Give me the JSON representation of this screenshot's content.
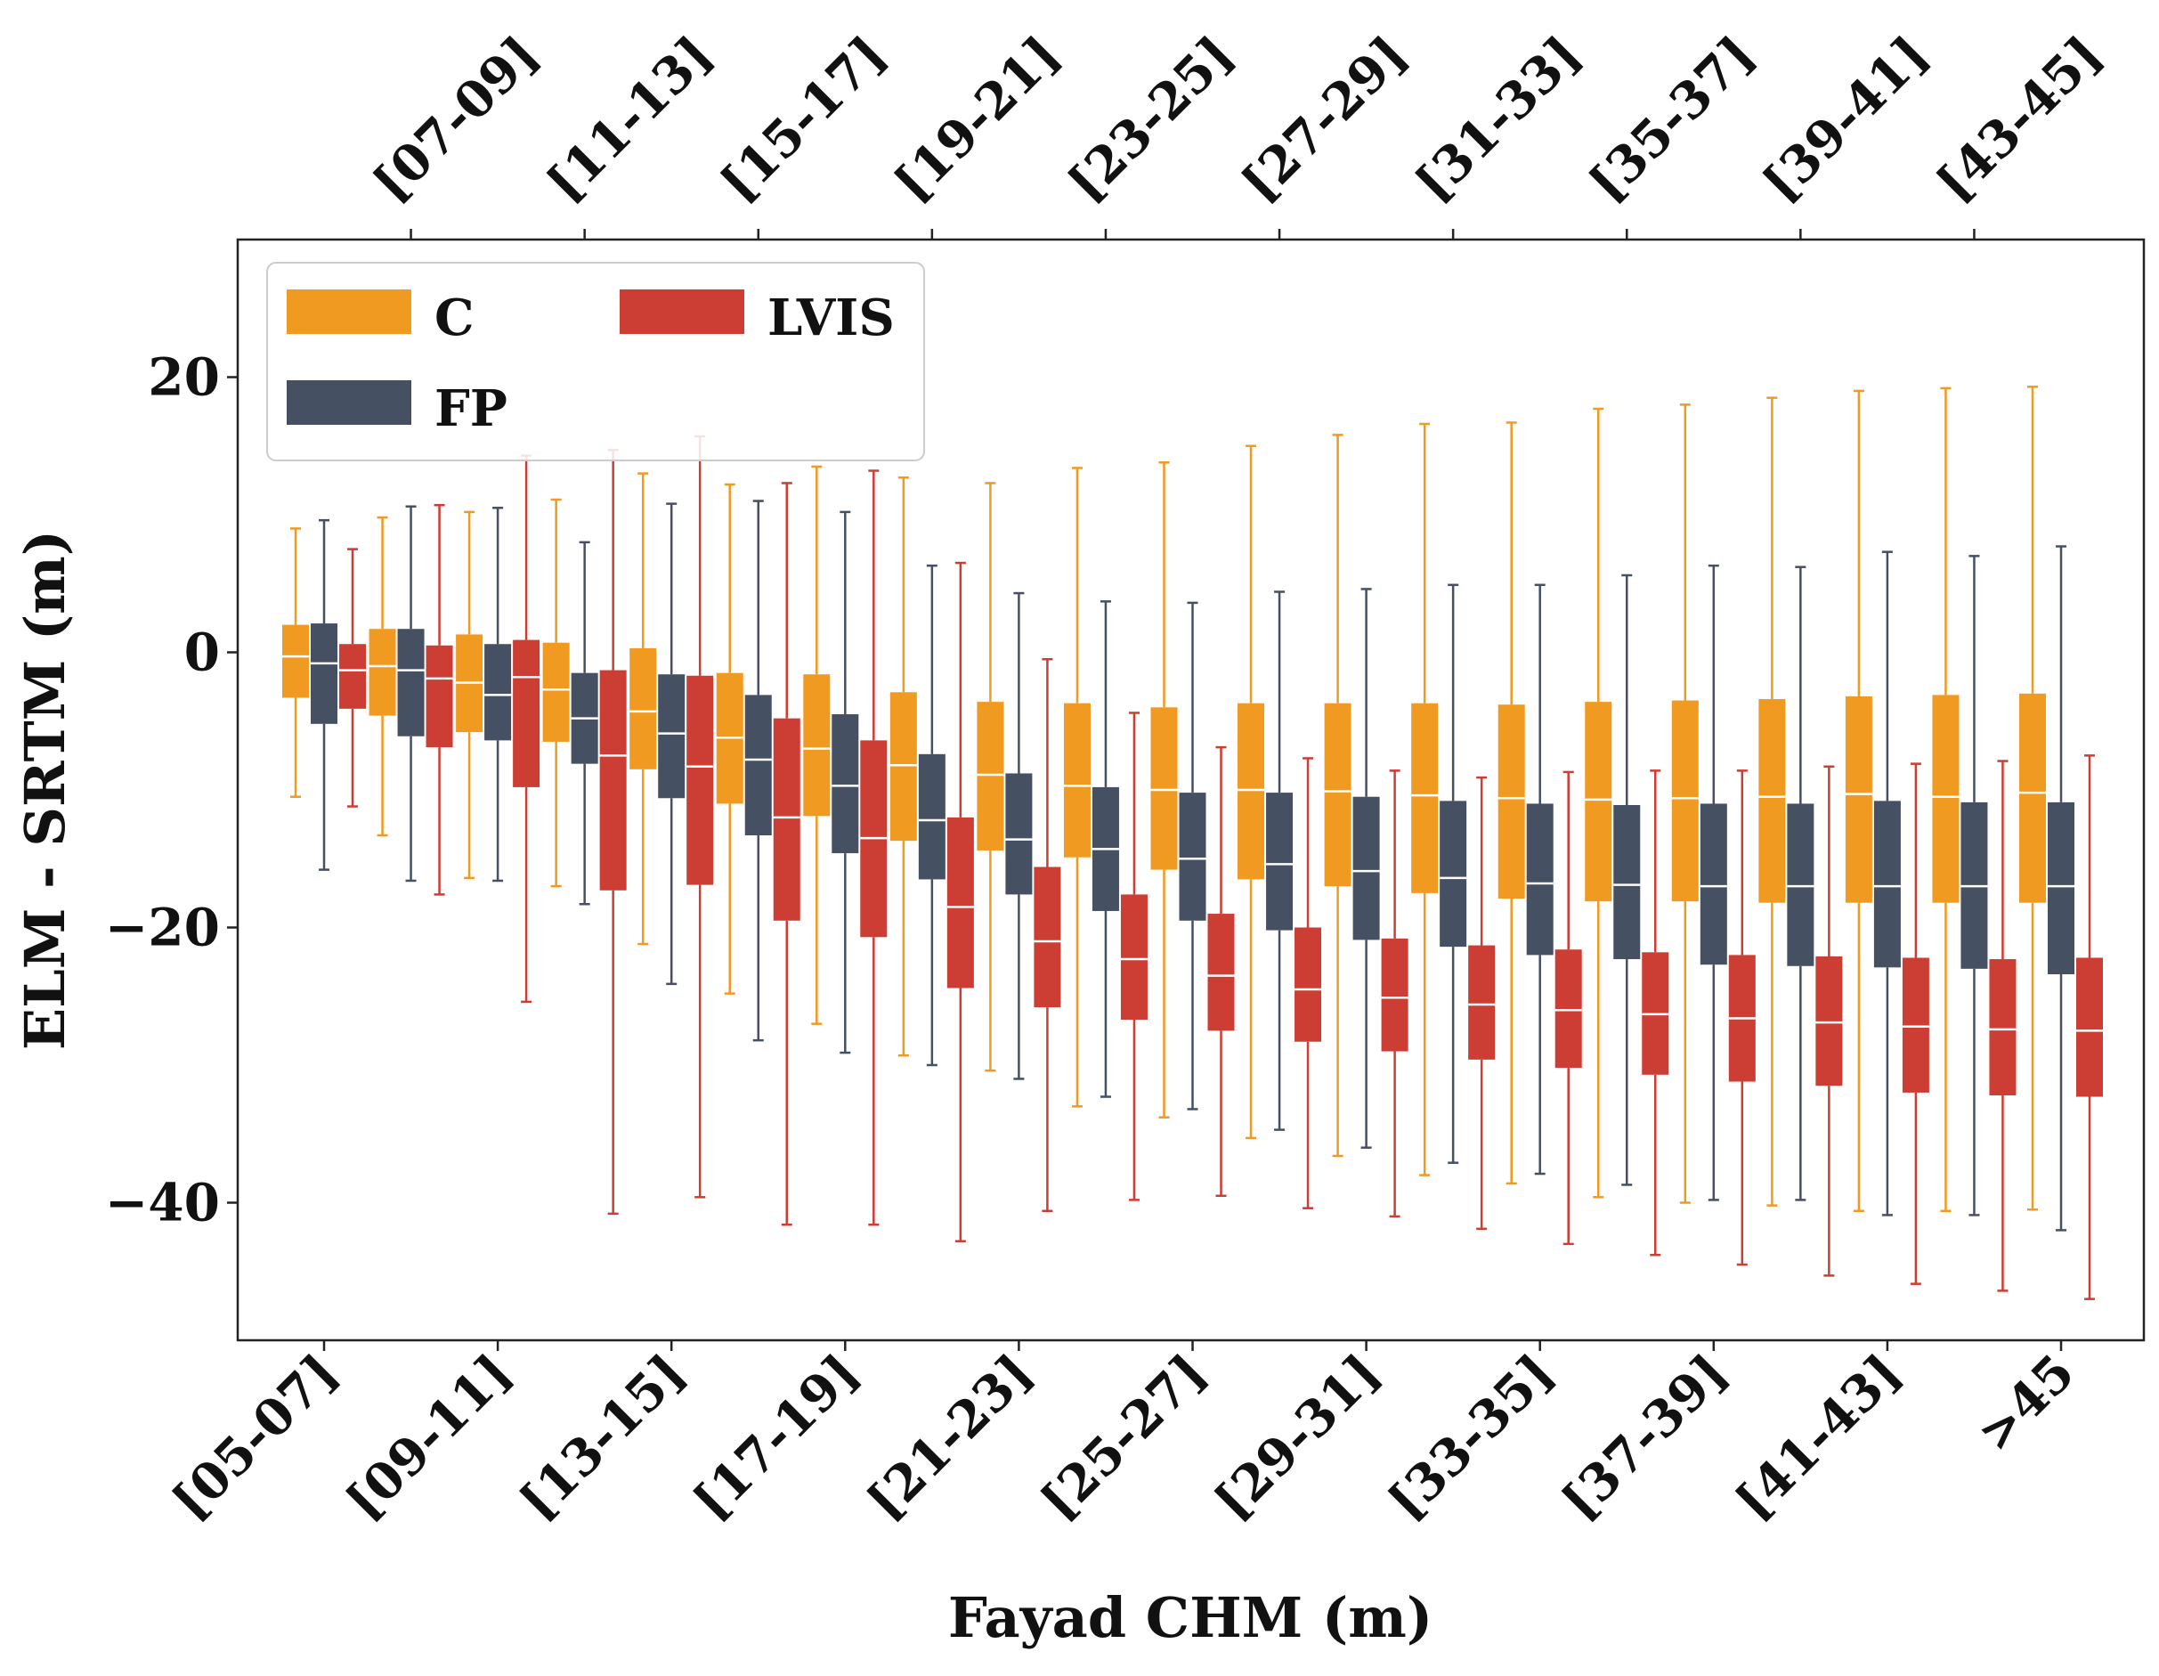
{
  "chart_data": {
    "type": "box",
    "title": "",
    "xlabel": "Fayad CHM (m)",
    "ylabel": "ELM - SRTM (m)",
    "ylim": [
      -50,
      30
    ],
    "yticks": [
      20,
      0,
      -20,
      -40
    ],
    "ytick_labels": [
      "20",
      "0",
      "−20",
      "−40"
    ],
    "categories": [
      "[05-07]",
      "[07-09]",
      "[09-11]",
      "[11-13]",
      "[13-15]",
      "[15-17]",
      "[17-19]",
      "[19-21]",
      "[21-23]",
      "[23-25]",
      "[25-27]",
      "[27-29]",
      "[29-31]",
      "[31-33]",
      "[33-35]",
      "[35-37]",
      "[37-39]",
      "[39-41]",
      "[41-43]",
      "[43-45]",
      ">45"
    ],
    "bottom_tick_labels": [
      "[05-07]",
      "[09-11]",
      "[13-15]",
      "[17-19]",
      "[21-23]",
      "[25-27]",
      "[29-31]",
      "[33-35]",
      "[37-39]",
      "[41-43]",
      ">45"
    ],
    "top_tick_labels": [
      "[07-09]",
      "[11-13]",
      "[15-17]",
      "[19-21]",
      "[23-25]",
      "[27-29]",
      "[31-33]",
      "[35-37]",
      "[39-41]",
      "[43-45]"
    ],
    "legend": {
      "position": "top-left",
      "entries": [
        "C",
        "FP",
        "LVIS"
      ]
    },
    "series": [
      {
        "name": "C",
        "color": "#f09a22",
        "whisker_low": [
          -10.5,
          -13.3,
          -16.4,
          -17.0,
          -21.2,
          -24.8,
          -27.0,
          -29.3,
          -30.4,
          -33.0,
          -33.8,
          -35.3,
          -36.6,
          -38.0,
          -38.6,
          -39.6,
          -40.0,
          -40.2,
          -40.6,
          -40.6,
          -40.5
        ],
        "q1": [
          -3.3,
          -4.6,
          -5.8,
          -6.5,
          -8.5,
          -11.0,
          -11.9,
          -13.7,
          -14.4,
          -14.9,
          -15.8,
          -16.5,
          -17.0,
          -17.5,
          -17.9,
          -18.1,
          -18.1,
          -18.2,
          -18.2,
          -18.2,
          -18.2
        ],
        "median": [
          -0.3,
          -1.0,
          -2.2,
          -2.7,
          -4.3,
          -6.2,
          -7.0,
          -8.2,
          -8.9,
          -9.7,
          -10.0,
          -10.0,
          -10.1,
          -10.4,
          -10.6,
          -10.7,
          -10.6,
          -10.5,
          -10.3,
          -10.5,
          -10.2
        ],
        "q3": [
          2.0,
          1.7,
          1.3,
          0.7,
          0.3,
          -1.5,
          -1.6,
          -2.9,
          -3.6,
          -3.7,
          -4.0,
          -3.7,
          -3.7,
          -3.7,
          -3.8,
          -3.6,
          -3.5,
          -3.4,
          -3.2,
          -3.1,
          -3.0
        ],
        "whisker_high": [
          9.0,
          9.8,
          10.2,
          11.1,
          13.0,
          12.2,
          13.5,
          12.7,
          12.3,
          13.4,
          13.8,
          15.0,
          15.8,
          16.6,
          16.7,
          17.7,
          18.0,
          18.5,
          19.0,
          19.2,
          19.3
        ]
      },
      {
        "name": "FP",
        "color": "#455063",
        "whisker_low": [
          -15.8,
          -16.6,
          -16.6,
          -18.3,
          -24.1,
          -28.2,
          -29.1,
          -30.0,
          -31.0,
          -32.3,
          -33.2,
          -34.7,
          -36.0,
          -37.1,
          -37.9,
          -38.7,
          -39.8,
          -39.8,
          -40.9,
          -40.9,
          -42.0
        ],
        "q1": [
          -5.2,
          -6.1,
          -6.4,
          -8.1,
          -10.6,
          -13.3,
          -14.6,
          -16.5,
          -17.6,
          -18.8,
          -19.5,
          -20.2,
          -20.9,
          -21.4,
          -22.0,
          -22.3,
          -22.7,
          -22.8,
          -22.9,
          -23.0,
          -23.4
        ],
        "median": [
          -0.8,
          -1.3,
          -3.1,
          -4.8,
          -5.9,
          -7.8,
          -9.7,
          -12.2,
          -13.6,
          -14.3,
          -15.0,
          -15.4,
          -15.9,
          -16.4,
          -16.8,
          -16.9,
          -17.0,
          -17.0,
          -17.0,
          -17.0,
          -17.0
        ],
        "q3": [
          2.1,
          1.7,
          0.6,
          -1.5,
          -1.6,
          -3.1,
          -4.5,
          -7.4,
          -8.8,
          -9.8,
          -10.2,
          -10.2,
          -10.5,
          -10.8,
          -11.0,
          -11.1,
          -11.0,
          -11.0,
          -10.8,
          -10.9,
          -10.9
        ],
        "whisker_high": [
          9.6,
          10.6,
          10.5,
          8.0,
          10.8,
          11.0,
          10.2,
          6.3,
          4.3,
          3.7,
          3.6,
          4.4,
          4.6,
          4.9,
          4.9,
          5.6,
          6.3,
          6.2,
          7.3,
          7.0,
          7.7
        ]
      },
      {
        "name": "LVIS",
        "color": "#cc3d33",
        "whisker_low": [
          -11.2,
          -17.6,
          -25.4,
          -40.8,
          -39.6,
          -41.6,
          -41.6,
          -42.8,
          -40.6,
          -39.8,
          -39.5,
          -40.4,
          -41.0,
          -41.9,
          -43.0,
          -43.8,
          -44.5,
          -45.3,
          -45.9,
          -46.4,
          -47.0
        ],
        "q1": [
          -4.1,
          -6.9,
          -9.8,
          -17.3,
          -16.9,
          -19.5,
          -20.7,
          -24.4,
          -25.8,
          -26.7,
          -27.5,
          -28.3,
          -29.0,
          -29.6,
          -30.2,
          -30.7,
          -31.2,
          -31.5,
          -32.0,
          -32.2,
          -32.3
        ],
        "median": [
          -1.3,
          -1.9,
          -1.8,
          -7.5,
          -8.3,
          -12.0,
          -13.5,
          -18.5,
          -21.0,
          -22.3,
          -23.5,
          -24.5,
          -25.1,
          -25.6,
          -26.0,
          -26.3,
          -26.6,
          -26.9,
          -27.2,
          -27.4,
          -27.5
        ],
        "q3": [
          0.6,
          0.5,
          0.9,
          -1.3,
          -1.7,
          -4.8,
          -6.4,
          -12.0,
          -15.6,
          -17.6,
          -19.0,
          -20.0,
          -20.8,
          -21.3,
          -21.6,
          -21.8,
          -22.0,
          -22.1,
          -22.2,
          -22.3,
          -22.2
        ],
        "whisker_high": [
          7.5,
          10.7,
          14.3,
          14.7,
          15.7,
          12.3,
          13.2,
          6.5,
          -0.5,
          -4.4,
          -6.9,
          -7.7,
          -8.6,
          -9.1,
          -8.7,
          -8.6,
          -8.6,
          -8.3,
          -8.1,
          -7.9,
          -7.5
        ]
      }
    ]
  }
}
